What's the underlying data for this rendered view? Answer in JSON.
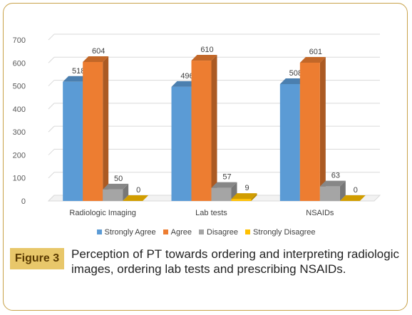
{
  "chart_data": {
    "type": "bar",
    "title": "",
    "xlabel": "",
    "ylabel": "",
    "ylim": [
      0,
      700
    ],
    "yticks": [
      0,
      100,
      200,
      300,
      400,
      500,
      600,
      700
    ],
    "grid": true,
    "legend_position": "bottom",
    "categories": [
      "Radiologic Imaging",
      "Lab tests",
      "NSAIDs"
    ],
    "series": [
      {
        "name": "Strongly Agree",
        "color": "#5b9bd5",
        "values": [
          518,
          496,
          508
        ]
      },
      {
        "name": "Agree",
        "color": "#ed7d31",
        "values": [
          604,
          610,
          601
        ]
      },
      {
        "name": "Disagree",
        "color": "#a5a5a5",
        "values": [
          50,
          57,
          63
        ]
      },
      {
        "name": "Strongly Disagree",
        "color": "#ffc000",
        "values": [
          0,
          9,
          0
        ]
      }
    ],
    "value_labels": [
      [
        "518",
        "604",
        "50",
        "0"
      ],
      [
        "496",
        "610",
        "57",
        "9"
      ],
      [
        "508",
        "601",
        "63",
        "0"
      ]
    ]
  },
  "caption": {
    "figure_label": "Figure 3",
    "text": "Perception of PT towards ordering and interpreting radiologic images, ordering lab tests and prescribing NSAIDs."
  }
}
